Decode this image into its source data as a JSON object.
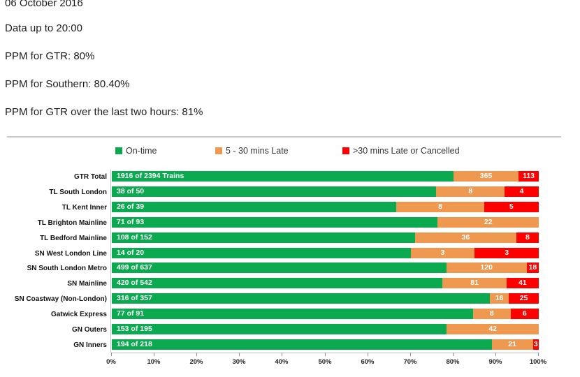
{
  "header": {
    "date": "06 October 2016",
    "data_up_to": "Data up to 20:00",
    "ppm_gtr": "PPM for GTR: 80%",
    "ppm_southern": "PPM for Southern: 80.40%",
    "ppm_gtr_two_hours": "PPM for GTR over the last two hours: 81%"
  },
  "legend": {
    "items": [
      {
        "name": "legend-swatch-ontime",
        "label": "On-time",
        "color": "#0BAA50"
      },
      {
        "name": "legend-swatch-late",
        "label": "5 - 30 mins Late",
        "color": "#EF9850"
      },
      {
        "name": "legend-swatch-cancelled",
        "label": ">30 mins Late or Cancelled",
        "color": "#FE0000"
      }
    ]
  },
  "chart_data": {
    "type": "bar",
    "orientation": "horizontal",
    "stacked": true,
    "stack_mode": "100%",
    "legend_position": "top",
    "grid": false,
    "xlim": [
      0,
      100
    ],
    "x_ticks": [
      "0%",
      "10%",
      "20%",
      "30%",
      "40%",
      "50%",
      "60%",
      "70%",
      "80%",
      "90%",
      "100%"
    ],
    "colors": {
      "ontime": "#0BAA50",
      "late": "#EF9850",
      "cancelled": "#FE0000"
    },
    "series_names": [
      "On-time",
      "5 - 30 mins Late",
      ">30 mins Late or Cancelled"
    ],
    "rows": [
      {
        "category": "GTR Total",
        "ontime": 1916,
        "late": 365,
        "cancelled": 113,
        "total": 2394,
        "ontime_label": "1916 of 2394 Trains"
      },
      {
        "category": "TL South London",
        "ontime": 38,
        "late": 8,
        "cancelled": 4,
        "total": 50,
        "ontime_label": "38 of 50"
      },
      {
        "category": "TL Kent Inner",
        "ontime": 26,
        "late": 8,
        "cancelled": 5,
        "total": 39,
        "ontime_label": "26 of 39"
      },
      {
        "category": "TL Brighton Mainline",
        "ontime": 71,
        "late": 22,
        "cancelled": 0,
        "total": 93,
        "ontime_label": "71 of 93"
      },
      {
        "category": "TL Bedford Mainline",
        "ontime": 108,
        "late": 36,
        "cancelled": 8,
        "total": 152,
        "ontime_label": "108 of 152"
      },
      {
        "category": "SN West London Line",
        "ontime": 14,
        "late": 3,
        "cancelled": 3,
        "total": 20,
        "ontime_label": "14 of 20"
      },
      {
        "category": "SN South London Metro",
        "ontime": 499,
        "late": 120,
        "cancelled": 18,
        "total": 637,
        "ontime_label": "499 of 637"
      },
      {
        "category": "SN Mainline",
        "ontime": 420,
        "late": 81,
        "cancelled": 41,
        "total": 542,
        "ontime_label": "420 of 542"
      },
      {
        "category": "SN Coastway (Non-London)",
        "ontime": 316,
        "late": 16,
        "cancelled": 25,
        "total": 357,
        "ontime_label": "316 of 357"
      },
      {
        "category": "Gatwick Express",
        "ontime": 77,
        "late": 8,
        "cancelled": 6,
        "total": 91,
        "ontime_label": "77 of 91"
      },
      {
        "category": "GN Outers",
        "ontime": 153,
        "late": 42,
        "cancelled": 0,
        "total": 195,
        "ontime_label": "153 of 195"
      },
      {
        "category": "GN Inners",
        "ontime": 194,
        "late": 21,
        "cancelled": 3,
        "total": 218,
        "ontime_label": "194 of 218"
      }
    ]
  }
}
